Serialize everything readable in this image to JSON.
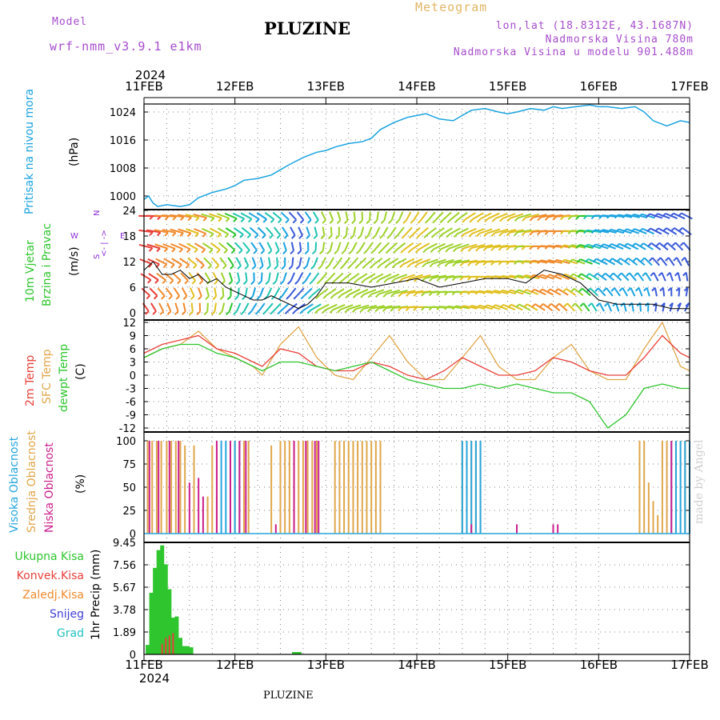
{
  "header": {
    "model_label": "Model",
    "model_name": "wrf-nmm_v3.9.1  e1km",
    "title": "PLUZINE",
    "meteogram": "Meteogram",
    "lonlat": "lon,lat (18.8312E, 43.1687N)",
    "elevation": "Nadmorska Visina 780m",
    "model_elevation": "Nadmorska Visina u modelu 901.488m",
    "footer_title": "PLUZINE",
    "credit": "made by Angel"
  },
  "time_axis": {
    "year": "2024",
    "labels": [
      "11FEB",
      "12FEB",
      "13FEB",
      "14FEB",
      "15FEB",
      "16FEB",
      "17FEB"
    ],
    "days": 6
  },
  "colors": {
    "pressure": "#1aa3e0",
    "t2m": "#e8403a",
    "sfc": "#e0a64a",
    "dewpt": "#2ec52e",
    "high_cloud": "#26a6dd",
    "mid_cloud": "#e0a64a",
    "low_cloud": "#cc1e8c",
    "precip_total": "#2ec52e",
    "precip_conv": "#e8403a",
    "frozen": "#f08a2c",
    "snow": "#3f3fd6",
    "hail": "#21bfbf",
    "wind_violet": "#8a2bd6",
    "grid": "#808080"
  },
  "chart_data": [
    {
      "type": "line",
      "ylabels": [
        "Pritisak na nivou mora",
        "(hPa)"
      ],
      "yticks": [
        "1024",
        "1016",
        "1008",
        "1000"
      ],
      "ylim": [
        997,
        1030
      ],
      "series": [
        {
          "name": "Pritisak na nivou mora",
          "x": [
            0,
            0.05,
            0.1,
            0.15,
            0.25,
            0.4,
            0.5,
            0.6,
            0.75,
            0.9,
            1.0,
            1.1,
            1.25,
            1.4,
            1.5,
            1.6,
            1.75,
            1.9,
            2.0,
            2.1,
            2.25,
            2.4,
            2.5,
            2.6,
            2.75,
            2.9,
            3.0,
            3.1,
            3.25,
            3.4,
            3.5,
            3.6,
            3.75,
            3.9,
            4.0,
            4.1,
            4.25,
            4.4,
            4.5,
            4.6,
            4.75,
            4.9,
            5.0,
            5.1,
            5.25,
            5.4,
            5.5,
            5.6,
            5.75,
            5.9,
            6.0
          ],
          "values": [
            999,
            1000,
            998,
            997,
            997.5,
            997,
            997.5,
            999.5,
            1001,
            1002,
            1003,
            1004.5,
            1005,
            1006,
            1007.5,
            1009,
            1011,
            1012.5,
            1013,
            1014,
            1015,
            1015.5,
            1016.5,
            1019,
            1021,
            1022.5,
            1023,
            1023.5,
            1022,
            1021.5,
            1023,
            1024.5,
            1025,
            1024,
            1023.5,
            1024,
            1025,
            1024.5,
            1025.5,
            1025,
            1025.5,
            1026,
            1025.5,
            1025.5,
            1025,
            1025.5,
            1024,
            1021.5,
            1020,
            1021.5,
            1021
          ]
        }
      ]
    },
    {
      "type": "line",
      "ylabels": [
        "10m Vjetar",
        "Brzina i Pravac",
        "(m/s)"
      ],
      "direction_labels": [
        "W",
        "<- | ->",
        "E",
        "S",
        "N"
      ],
      "yticks": [
        "24",
        "18",
        "12",
        "6",
        "0"
      ],
      "ylim": [
        0,
        24
      ],
      "series": [
        {
          "name": "10m Vjetar",
          "x": [
            0,
            0.1,
            0.2,
            0.3,
            0.4,
            0.5,
            0.6,
            0.7,
            0.8,
            0.9,
            1.0,
            1.1,
            1.2,
            1.3,
            1.4,
            1.5,
            1.6,
            1.7,
            1.8,
            1.9,
            2.0,
            2.25,
            2.5,
            2.75,
            3.0,
            3.25,
            3.5,
            3.75,
            4.0,
            4.2,
            4.4,
            4.6,
            4.8,
            5.0,
            5.2,
            5.4,
            5.6,
            5.8,
            6.0
          ],
          "values": [
            10,
            12,
            9,
            9,
            10,
            8,
            9,
            7,
            8,
            6,
            5,
            4,
            3,
            3,
            4,
            3,
            2,
            1,
            2,
            4,
            7,
            7,
            6,
            7,
            8,
            6,
            7,
            8,
            8,
            7,
            10,
            9,
            7,
            3,
            2,
            2,
            2,
            1,
            1
          ]
        }
      ]
    },
    {
      "type": "line",
      "ylabels": [
        "2m Temp",
        "SFC Temp",
        "dewpt Temp",
        "(C)"
      ],
      "yticks": [
        "12",
        "9",
        "6",
        "3",
        "0",
        "-3",
        "-6",
        "-9",
        "-12"
      ],
      "ylim": [
        -13,
        13
      ],
      "series": [
        {
          "name": "2m Temp",
          "x": [
            0,
            0.2,
            0.4,
            0.6,
            0.8,
            1.0,
            1.2,
            1.3,
            1.5,
            1.7,
            1.9,
            2.1,
            2.3,
            2.5,
            2.7,
            2.9,
            3.1,
            3.3,
            3.5,
            3.7,
            3.9,
            4.1,
            4.3,
            4.5,
            4.7,
            4.9,
            5.1,
            5.3,
            5.5,
            5.7,
            5.9,
            6.0
          ],
          "values": [
            5,
            7,
            8,
            9,
            6,
            5,
            3,
            2,
            6,
            5,
            2,
            1,
            1,
            3,
            2,
            0,
            -1,
            1,
            4,
            2,
            0,
            0,
            1,
            4,
            3,
            1,
            0,
            0,
            4,
            9,
            5,
            4
          ]
        },
        {
          "name": "SFC Temp",
          "x": [
            0,
            0.2,
            0.4,
            0.6,
            0.8,
            1.0,
            1.2,
            1.3,
            1.5,
            1.7,
            1.9,
            2.1,
            2.3,
            2.5,
            2.7,
            2.9,
            3.1,
            3.3,
            3.5,
            3.7,
            3.9,
            4.1,
            4.3,
            4.5,
            4.7,
            4.9,
            5.1,
            5.3,
            5.5,
            5.7,
            5.9,
            6.0
          ],
          "values": [
            4,
            6,
            7,
            10,
            6,
            4,
            2,
            0,
            7,
            11,
            4,
            0,
            -1,
            4,
            9,
            3,
            -1,
            -1,
            4,
            9,
            2,
            -1,
            -1,
            4,
            7,
            1,
            -1,
            -1,
            6,
            12,
            2,
            1
          ]
        },
        {
          "name": "dewpt Temp",
          "x": [
            0,
            0.2,
            0.4,
            0.6,
            0.8,
            1.0,
            1.2,
            1.3,
            1.5,
            1.7,
            1.9,
            2.1,
            2.3,
            2.5,
            2.7,
            2.9,
            3.1,
            3.3,
            3.5,
            3.7,
            3.9,
            4.1,
            4.3,
            4.5,
            4.7,
            4.9,
            5.1,
            5.3,
            5.5,
            5.7,
            5.9,
            6.0
          ],
          "values": [
            4,
            6,
            7,
            7,
            5,
            4,
            2,
            1,
            3,
            3,
            2,
            1,
            2,
            3,
            1,
            -1,
            -2,
            -3,
            -3,
            -2,
            -3,
            -2,
            -3,
            -4,
            -4,
            -6,
            -12,
            -9,
            -3,
            -2,
            -3,
            -3
          ]
        }
      ]
    },
    {
      "type": "bar",
      "ylabels": [
        "Visoka Oblacnost",
        "Srednja Oblacnost",
        "Niska Oblacnost",
        "(%)"
      ],
      "yticks": [
        "100",
        "75",
        "50",
        "25",
        "0"
      ],
      "ylim": [
        0,
        100
      ],
      "series": [
        {
          "name": "Visoka Oblacnost",
          "x": [
            0.85,
            0.9,
            0.95,
            1.0,
            1.05,
            3.5,
            3.55,
            3.6,
            3.65,
            3.7,
            5.8,
            5.85,
            5.9,
            5.95,
            6.0
          ],
          "values": [
            100,
            100,
            100,
            100,
            100,
            100,
            100,
            100,
            100,
            100,
            100,
            100,
            100,
            100,
            100
          ]
        },
        {
          "name": "Srednja Oblacnost",
          "x": [
            0.04,
            0.09,
            0.14,
            0.19,
            0.25,
            0.3,
            0.35,
            0.4,
            0.45,
            0.55,
            0.7,
            0.75,
            0.8,
            1.0,
            1.1,
            1.15,
            1.4,
            1.5,
            1.55,
            1.6,
            1.65,
            1.7,
            1.75,
            1.8,
            1.85,
            1.9,
            2.1,
            2.15,
            2.2,
            2.25,
            2.3,
            2.35,
            2.4,
            2.45,
            2.5,
            2.55,
            2.6,
            3.5,
            3.55,
            3.6,
            3.65,
            3.7,
            5.45,
            5.5,
            5.55,
            5.6,
            5.65,
            5.7,
            5.75,
            5.85,
            5.95
          ],
          "values": [
            100,
            100,
            100,
            100,
            100,
            100,
            100,
            100,
            95,
            95,
            40,
            95,
            40,
            100,
            100,
            100,
            95,
            100,
            100,
            100,
            100,
            100,
            100,
            100,
            100,
            100,
            100,
            100,
            100,
            100,
            100,
            100,
            100,
            100,
            100,
            100,
            100,
            100,
            100,
            100,
            100,
            100,
            100,
            100,
            55,
            35,
            20,
            100,
            100,
            100,
            100
          ]
        },
        {
          "name": "Niska Oblacnost",
          "x": [
            0.06,
            0.16,
            0.28,
            0.38,
            0.5,
            0.6,
            0.65,
            0.8,
            0.95,
            1.05,
            1.12,
            1.45,
            1.65,
            1.78,
            1.88,
            1.92,
            3.6,
            4.1,
            4.5,
            4.55,
            5.8
          ],
          "values": [
            100,
            100,
            100,
            100,
            55,
            60,
            40,
            100,
            100,
            100,
            100,
            10,
            100,
            100,
            100,
            100,
            10,
            10,
            10,
            10,
            100
          ]
        }
      ]
    },
    {
      "type": "bar",
      "ylabels": [
        "Ukupna Kisa",
        "Konvek.Kisa",
        "Zaledj.Kisa",
        "Snijeg",
        "Grad",
        "1hr Precip (mm)"
      ],
      "yticks": [
        "9.45",
        "7.56",
        "5.67",
        "3.78",
        "1.89",
        "0"
      ],
      "ylim": [
        0,
        9.45
      ],
      "series": [
        {
          "name": "Ukupna Kisa",
          "x": [
            0.04,
            0.08,
            0.12,
            0.16,
            0.2,
            0.24,
            0.28,
            0.32,
            0.36,
            0.4,
            0.44,
            0.48,
            0.52,
            1.65,
            1.68,
            1.71
          ],
          "values": [
            0.8,
            5.2,
            7.3,
            8.8,
            9.2,
            7.6,
            5.5,
            3.1,
            3.2,
            1.4,
            0.7,
            0.7,
            0.6,
            0.2,
            0.2,
            0.2
          ]
        },
        {
          "name": "Konvek.Kisa",
          "x": [
            0.2,
            0.24,
            0.28,
            0.32
          ],
          "values": [
            0.9,
            1.4,
            1.6,
            1.8
          ]
        }
      ]
    }
  ]
}
